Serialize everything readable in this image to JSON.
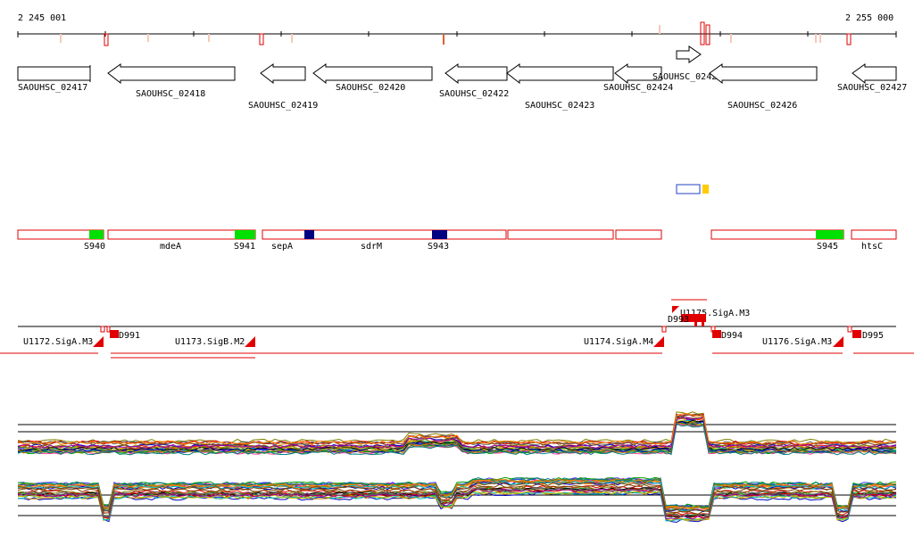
{
  "coords": {
    "start": "2 245 001",
    "end": "2 255 000"
  },
  "genes": [
    {
      "name": "SAOUHSC_02417",
      "dir": "right"
    },
    {
      "name": "SAOUHSC_02418",
      "dir": "left"
    },
    {
      "name": "SAOUHSC_02419",
      "dir": "left"
    },
    {
      "name": "SAOUHSC_02420",
      "dir": "left"
    },
    {
      "name": "SAOUHSC_02422",
      "dir": "left"
    },
    {
      "name": "SAOUHSC_02423",
      "dir": "left"
    },
    {
      "name": "SAOUHSC_02424",
      "dir": "left"
    },
    {
      "name": "SAOUHSC_02425",
      "dir": "right"
    },
    {
      "name": "SAOUHSC_02426",
      "dir": "left"
    },
    {
      "name": "SAOUHSC_02427",
      "dir": "left"
    }
  ],
  "operon_labels": {
    "S940": "S940",
    "mdeA": "mdeA",
    "S941": "S941",
    "sepA": "sepA",
    "sdrM": "sdrM",
    "S943": "S943",
    "S945": "S945",
    "htsC": "htsC"
  },
  "promoters": [
    "U1172.SigA.M3",
    "U1173.SigB.M2",
    "U1174.SigA.M4",
    "U1175.SigA.M3",
    "U1176.SigA.M3"
  ],
  "terminators": [
    "D991",
    "D993",
    "D994",
    "D995"
  ],
  "colors": {
    "red": "#e00000",
    "light_red": "#f0a090",
    "green": "#00e000",
    "navy": "#000080",
    "blue": "#2040c0",
    "orange": "#ffcc00"
  }
}
